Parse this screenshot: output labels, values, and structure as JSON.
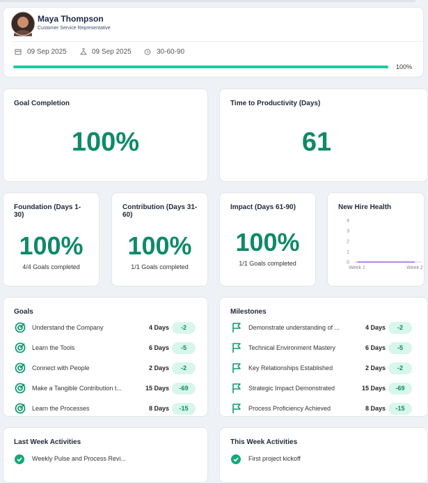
{
  "header": {
    "name": "Maya Thompson",
    "role": "Customer Service Representative",
    "start_date": "09 Sep 2025",
    "end_date": "09 Sep 2025",
    "plan": "30-60-90",
    "progress_label": "100%"
  },
  "goal_completion": {
    "title": "Goal Completion",
    "value": "100%"
  },
  "time_to_productivity": {
    "title": "Time to Productivity (Days)",
    "value": "61"
  },
  "phases": [
    {
      "title": "Foundation (Days 1-30)",
      "value": "100%",
      "note": "4/4 Goals completed"
    },
    {
      "title": "Contribution (Days 31-60)",
      "value": "100%",
      "note": "1/1 Goals completed"
    },
    {
      "title": "Impact (Days 61-90)",
      "value": "100%",
      "note": "1/1 Goals completed"
    }
  ],
  "health": {
    "title": "New Hire Health",
    "yticks": [
      0,
      1,
      2,
      3,
      4
    ],
    "ylim": [
      0,
      4
    ],
    "categories": [
      "Week 1",
      "Week 2"
    ],
    "values": [
      0,
      0
    ],
    "color": "#9b5de5"
  },
  "goals": {
    "title": "Goals",
    "items": [
      {
        "name": "Understand the Company",
        "days": "4 Days",
        "delta": "-2"
      },
      {
        "name": "Learn the Tools",
        "days": "6 Days",
        "delta": "-5"
      },
      {
        "name": "Connect with People",
        "days": "2 Days",
        "delta": "-2"
      },
      {
        "name": "Make a Tangible Contribution t...",
        "days": "15 Days",
        "delta": "-69"
      },
      {
        "name": "Learn the Processes",
        "days": "8 Days",
        "delta": "-15"
      }
    ]
  },
  "milestones": {
    "title": "Milestones",
    "items": [
      {
        "name": "Demonstrate understanding of ...",
        "days": "4 Days",
        "delta": "-2"
      },
      {
        "name": "Technical Environment Mastery",
        "days": "6 Days",
        "delta": "-5"
      },
      {
        "name": "Key Relationships Established",
        "days": "2 Days",
        "delta": "-2"
      },
      {
        "name": "Strategic Impact Demonstrated",
        "days": "15 Days",
        "delta": "-69"
      },
      {
        "name": "Process Proficiency Achieved",
        "days": "8 Days",
        "delta": "-15"
      }
    ]
  },
  "last_week": {
    "title": "Last Week Activities",
    "items": [
      "Weekly Pulse and Process Revi..."
    ]
  },
  "this_week": {
    "title": "This Week Activities",
    "items": [
      "First project kickoff"
    ]
  }
}
